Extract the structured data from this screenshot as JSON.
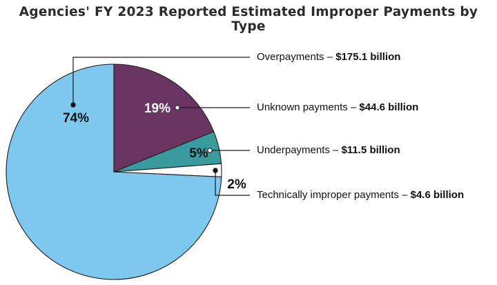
{
  "chart_data": {
    "type": "pie",
    "title": "Agencies' FY 2023 Reported Estimated Improper Payments by Type",
    "slices": [
      {
        "label": "Overpayments",
        "amount": "$175.1 billion",
        "value": 175.1,
        "percent": "74%",
        "color": "#7ec8ef",
        "text_color": "#111111"
      },
      {
        "label": "Unknown payments",
        "amount": "$44.6 billion",
        "value": 44.6,
        "percent": "19%",
        "color": "#6b3562",
        "text_color": "#ffffff"
      },
      {
        "label": "Underpayments",
        "amount": "$11.5 billion",
        "value": 11.5,
        "percent": "5%",
        "color": "#3a9b9f",
        "text_color": "#111111"
      },
      {
        "label": "Technically improper payments",
        "amount": "$4.6 billion",
        "value": 4.6,
        "percent": "2%",
        "color": "#ffffff",
        "text_color": "#111111"
      }
    ],
    "separator": " – "
  }
}
